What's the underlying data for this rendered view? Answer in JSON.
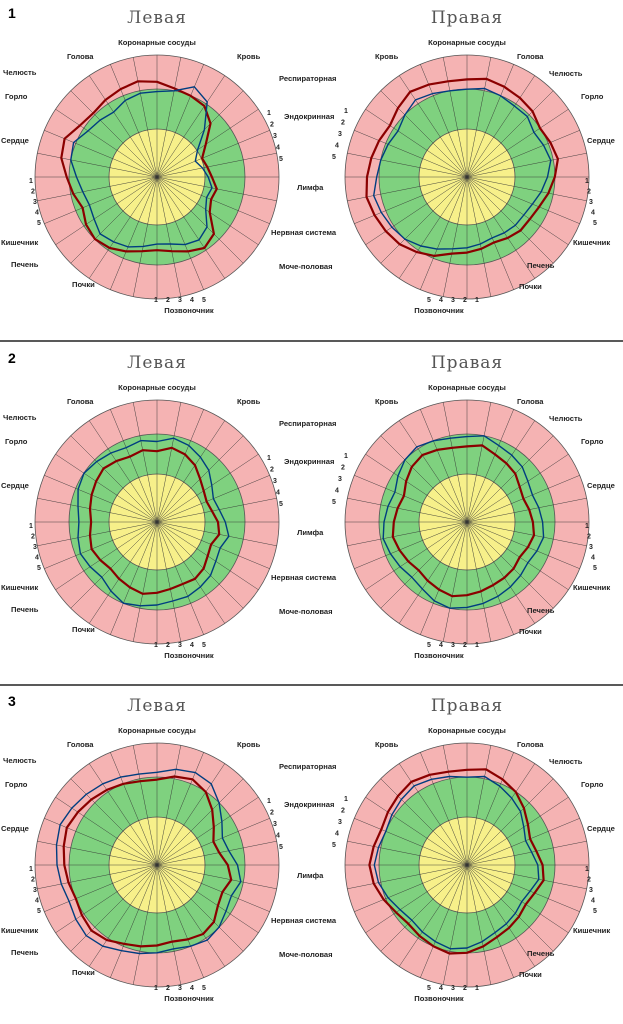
{
  "chart_data": {
    "type": "radar",
    "panels": [
      {
        "number": "1",
        "charts": [
          {
            "side": "left",
            "title": "Левая",
            "labels": {
              "coronary": "Коронарные сосуды",
              "blood": "Кровь",
              "resp": "Респираторная",
              "endo": "Эндокринная",
              "lymph": "Лимфа",
              "nerve": "Нервная система",
              "urogen": "Моче-половая",
              "spine": "Позвоночник",
              "kidney": "Почки",
              "liver": "Печень",
              "intest": "Кишечник",
              "heart": "Сердце",
              "throat": "Горло",
              "jaw": "Челюсть",
              "head": "Голова"
            },
            "seg_labels": [
              "1",
              "2",
              "3",
              "4",
              "5"
            ],
            "series": [
              {
                "color": "#8b0000",
                "values": [
                  0.78,
                  0.74,
                  0.72,
                  0.7,
                  0.62,
                  0.48,
                  0.4,
                  0.42,
                  0.45,
                  0.5,
                  0.48,
                  0.52,
                  0.66,
                  0.7,
                  0.66,
                  0.62,
                  0.6,
                  0.62,
                  0.66,
                  0.7,
                  0.72,
                  0.7,
                  0.66,
                  0.7,
                  0.74,
                  0.8,
                  0.82,
                  0.76,
                  0.74,
                  0.76,
                  0.78,
                  0.8
                ]
              },
              {
                "color": "#003d80",
                "values": [
                  0.7,
                  0.72,
                  0.8,
                  0.74,
                  0.55,
                  0.4,
                  0.34,
                  0.38,
                  0.42,
                  0.46,
                  0.44,
                  0.48,
                  0.58,
                  0.62,
                  0.6,
                  0.56,
                  0.55,
                  0.58,
                  0.62,
                  0.64,
                  0.66,
                  0.62,
                  0.6,
                  0.62,
                  0.66,
                  0.72,
                  0.74,
                  0.68,
                  0.66,
                  0.64,
                  0.68,
                  0.7
                ]
              }
            ]
          },
          {
            "side": "right",
            "title": "Правая",
            "labels": {
              "coronary": "Коронарные сосуды",
              "blood": "Кровь",
              "head": "Голова",
              "jaw": "Челюсть",
              "throat": "Горло",
              "heart": "Сердце",
              "intest": "Кишечник",
              "liver": "Печень",
              "kidney": "Почки",
              "spine": "Позвоночник"
            },
            "seg_labels": [
              "1",
              "2",
              "3",
              "4",
              "5"
            ],
            "series": [
              {
                "color": "#8b0000",
                "values": [
                  0.8,
                  0.82,
                  0.8,
                  0.78,
                  0.76,
                  0.72,
                  0.74,
                  0.76,
                  0.72,
                  0.68,
                  0.64,
                  0.62,
                  0.62,
                  0.6,
                  0.58,
                  0.6,
                  0.62,
                  0.64,
                  0.7,
                  0.74,
                  0.78,
                  0.8,
                  0.82,
                  0.84,
                  0.82,
                  0.8,
                  0.78,
                  0.76,
                  0.8,
                  0.84,
                  0.82,
                  0.8
                ]
              },
              {
                "color": "#003d80",
                "values": [
                  0.72,
                  0.74,
                  0.72,
                  0.7,
                  0.7,
                  0.66,
                  0.68,
                  0.7,
                  0.66,
                  0.62,
                  0.58,
                  0.56,
                  0.56,
                  0.55,
                  0.54,
                  0.56,
                  0.58,
                  0.6,
                  0.64,
                  0.68,
                  0.72,
                  0.74,
                  0.76,
                  0.78,
                  0.74,
                  0.72,
                  0.7,
                  0.68,
                  0.72,
                  0.76,
                  0.74,
                  0.72
                ]
              }
            ]
          }
        ]
      },
      {
        "number": "2",
        "charts": [
          {
            "side": "left",
            "title": "Левая",
            "labels": {
              "coronary": "Коронарные сосуды",
              "blood": "Кровь",
              "resp": "Респираторная",
              "endo": "Эндокринная",
              "lymph": "Лимфа",
              "nerve": "Нервная система",
              "urogen": "Моче-половая",
              "spine": "Позвоночник",
              "kidney": "Почки",
              "liver": "Печень",
              "intest": "Кишечник",
              "heart": "Сердце",
              "throat": "Горло",
              "jaw": "Челюсть",
              "head": "Голова"
            },
            "seg_labels": [
              "1",
              "2",
              "3",
              "4",
              "5"
            ],
            "series": [
              {
                "color": "#8b0000",
                "values": [
                  0.58,
                  0.62,
                  0.6,
                  0.56,
                  0.5,
                  0.46,
                  0.44,
                  0.46,
                  0.5,
                  0.52,
                  0.48,
                  0.5,
                  0.54,
                  0.56,
                  0.55,
                  0.56,
                  0.58,
                  0.6,
                  0.58,
                  0.56,
                  0.54,
                  0.56,
                  0.58,
                  0.56,
                  0.54,
                  0.56,
                  0.58,
                  0.6,
                  0.62,
                  0.6,
                  0.58,
                  0.6
                ]
              },
              {
                "color": "#003d80",
                "values": [
                  0.66,
                  0.7,
                  0.68,
                  0.64,
                  0.6,
                  0.54,
                  0.5,
                  0.52,
                  0.56,
                  0.6,
                  0.56,
                  0.58,
                  0.62,
                  0.64,
                  0.66,
                  0.66,
                  0.68,
                  0.7,
                  0.72,
                  0.68,
                  0.64,
                  0.66,
                  0.68,
                  0.66,
                  0.64,
                  0.66,
                  0.7,
                  0.72,
                  0.7,
                  0.68,
                  0.66,
                  0.68
                ]
              }
            ]
          },
          {
            "side": "right",
            "title": "Правая",
            "labels": {
              "coronary": "Коронарные сосуды",
              "blood": "Кровь",
              "head": "Голова",
              "jaw": "Челюсть",
              "throat": "Горло",
              "heart": "Сердце",
              "intest": "Кишечник",
              "liver": "Печень",
              "kidney": "Почки",
              "spine": "Позвоночник"
            },
            "seg_labels": [
              "1",
              "2",
              "3",
              "4",
              "5"
            ],
            "series": [
              {
                "color": "#8b0000",
                "values": [
                  0.62,
                  0.64,
                  0.6,
                  0.58,
                  0.56,
                  0.52,
                  0.5,
                  0.52,
                  0.54,
                  0.56,
                  0.54,
                  0.52,
                  0.54,
                  0.55,
                  0.56,
                  0.58,
                  0.6,
                  0.62,
                  0.6,
                  0.58,
                  0.56,
                  0.58,
                  0.6,
                  0.62,
                  0.6,
                  0.58,
                  0.56,
                  0.6,
                  0.64,
                  0.66,
                  0.64,
                  0.62
                ]
              },
              {
                "color": "#003d80",
                "values": [
                  0.7,
                  0.72,
                  0.68,
                  0.66,
                  0.64,
                  0.6,
                  0.58,
                  0.6,
                  0.62,
                  0.64,
                  0.62,
                  0.6,
                  0.62,
                  0.64,
                  0.66,
                  0.68,
                  0.7,
                  0.72,
                  0.7,
                  0.66,
                  0.64,
                  0.66,
                  0.68,
                  0.7,
                  0.68,
                  0.66,
                  0.64,
                  0.68,
                  0.72,
                  0.74,
                  0.72,
                  0.7
                ]
              }
            ]
          }
        ]
      },
      {
        "number": "3",
        "charts": [
          {
            "side": "left",
            "title": "Левая",
            "labels": {
              "coronary": "Коронарные сосуды",
              "blood": "Кровь",
              "resp": "Респираторная",
              "endo": "Эндокринная",
              "lymph": "Лимфа",
              "nerve": "Нервная система",
              "urogen": "Моче-половая",
              "spine": "Позвоночник",
              "kidney": "Почки",
              "liver": "Печень",
              "intest": "Кишечник",
              "heart": "Сердце",
              "throat": "Горло",
              "jaw": "Челюсть",
              "head": "Голова"
            },
            "seg_labels": [
              "1",
              "2",
              "3",
              "4",
              "5"
            ],
            "series": [
              {
                "color": "#8b0000",
                "values": [
                  0.7,
                  0.74,
                  0.76,
                  0.72,
                  0.64,
                  0.56,
                  0.5,
                  0.52,
                  0.58,
                  0.62,
                  0.58,
                  0.6,
                  0.66,
                  0.68,
                  0.66,
                  0.64,
                  0.66,
                  0.68,
                  0.7,
                  0.74,
                  0.76,
                  0.74,
                  0.72,
                  0.74,
                  0.76,
                  0.78,
                  0.8,
                  0.78,
                  0.76,
                  0.74,
                  0.72,
                  0.7
                ]
              },
              {
                "color": "#003d80",
                "values": [
                  0.76,
                  0.8,
                  0.82,
                  0.8,
                  0.72,
                  0.64,
                  0.58,
                  0.6,
                  0.66,
                  0.7,
                  0.66,
                  0.68,
                  0.72,
                  0.74,
                  0.72,
                  0.7,
                  0.72,
                  0.74,
                  0.76,
                  0.8,
                  0.82,
                  0.8,
                  0.78,
                  0.8,
                  0.82,
                  0.84,
                  0.86,
                  0.84,
                  0.82,
                  0.8,
                  0.78,
                  0.76
                ]
              }
            ]
          },
          {
            "side": "right",
            "title": "Правая",
            "labels": {
              "coronary": "Коронарные сосуды",
              "blood": "Кровь",
              "head": "Голова",
              "jaw": "Челюсть",
              "throat": "Горло",
              "heart": "Сердце",
              "intest": "Кишечник",
              "liver": "Печень",
              "kidney": "Почки",
              "spine": "Позвоночник"
            },
            "seg_labels": [
              "1",
              "2",
              "3",
              "4",
              "5"
            ],
            "series": [
              {
                "color": "#8b0000",
                "values": [
                  0.78,
                  0.8,
                  0.76,
                  0.72,
                  0.66,
                  0.6,
                  0.56,
                  0.58,
                  0.62,
                  0.64,
                  0.6,
                  0.58,
                  0.6,
                  0.62,
                  0.64,
                  0.68,
                  0.72,
                  0.74,
                  0.72,
                  0.7,
                  0.68,
                  0.7,
                  0.74,
                  0.78,
                  0.8,
                  0.78,
                  0.76,
                  0.78,
                  0.8,
                  0.82,
                  0.8,
                  0.78
                ]
              },
              {
                "color": "#003d80",
                "values": [
                  0.72,
                  0.74,
                  0.7,
                  0.66,
                  0.62,
                  0.56,
                  0.52,
                  0.54,
                  0.58,
                  0.6,
                  0.56,
                  0.54,
                  0.56,
                  0.58,
                  0.6,
                  0.64,
                  0.68,
                  0.7,
                  0.68,
                  0.66,
                  0.64,
                  0.66,
                  0.7,
                  0.74,
                  0.76,
                  0.74,
                  0.72,
                  0.74,
                  0.76,
                  0.78,
                  0.76,
                  0.74
                ]
              }
            ]
          }
        ]
      }
    ]
  }
}
